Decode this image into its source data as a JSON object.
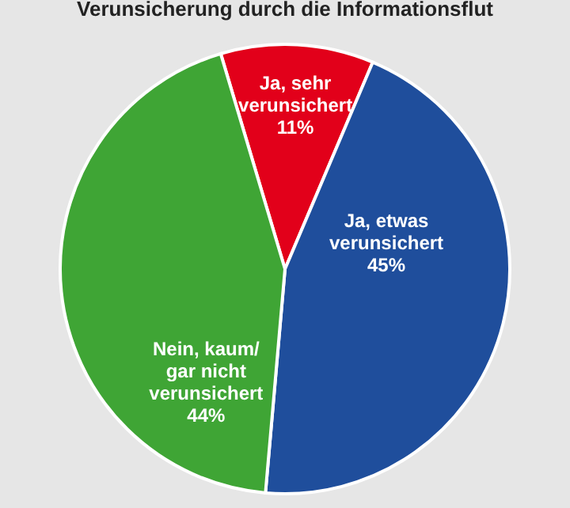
{
  "chart_data": {
    "type": "pie",
    "title": "Verunsicherung durch die Informationsflut",
    "categories": [
      "Ja, sehr\nverunsichert",
      "Ja, etwas\nverunsichert",
      "Nein, kaum/\ngar nicht\nverunsichert"
    ],
    "values": [
      11,
      45,
      44
    ],
    "colors": [
      "#e2001a",
      "#1f4e9c",
      "#3fa535"
    ],
    "value_labels": [
      "11%",
      "45%",
      "44%"
    ],
    "legend": false
  }
}
